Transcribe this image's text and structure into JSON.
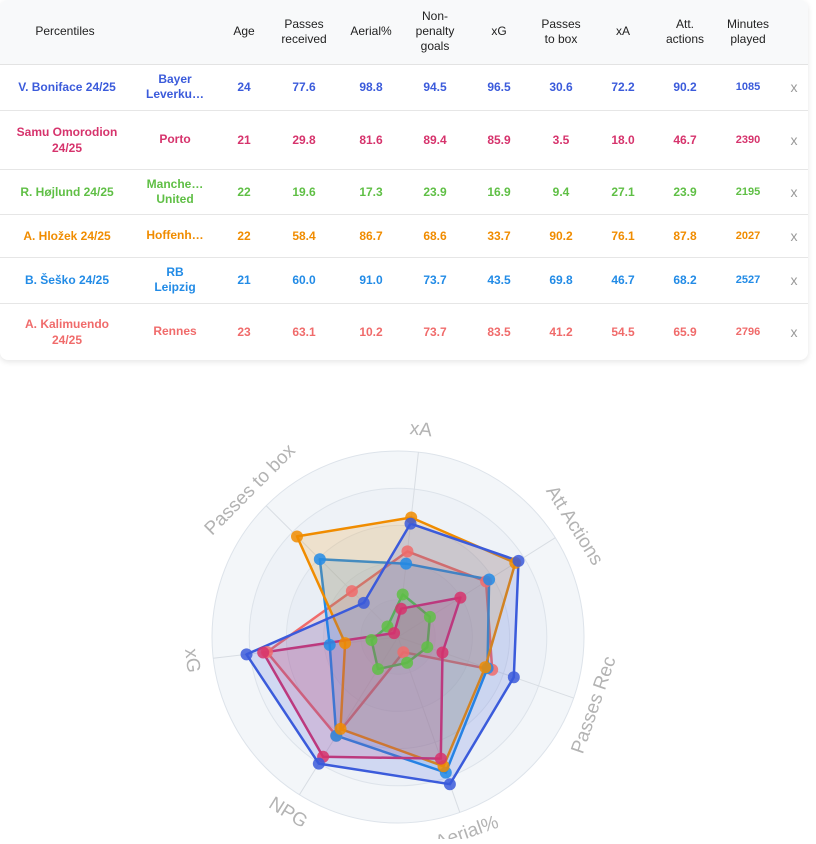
{
  "table": {
    "headers": [
      {
        "key": "percentiles",
        "label": "Percentiles"
      },
      {
        "key": "club",
        "label": ""
      },
      {
        "key": "age",
        "label": "Age"
      },
      {
        "key": "passes_received",
        "label": "Passes\nreceived"
      },
      {
        "key": "aerial",
        "label": "Aerial%"
      },
      {
        "key": "npg",
        "label": "Non-\npenalty\ngoals"
      },
      {
        "key": "xg",
        "label": "xG"
      },
      {
        "key": "passes_to_box",
        "label": "Passes\nto box"
      },
      {
        "key": "xa",
        "label": "xA"
      },
      {
        "key": "att_actions",
        "label": "Att.\nactions"
      },
      {
        "key": "minutes",
        "label": "Minutes\nplayed"
      },
      {
        "key": "remove",
        "label": ""
      }
    ],
    "rows": [
      {
        "name": "V. Boniface 24/25",
        "club": "Bayer\nLeverku…",
        "age": "24",
        "passes_received": "77.6",
        "aerial": "98.8",
        "npg": "94.5",
        "xg": "96.5",
        "passes_to_box": "30.6",
        "xa": "72.2",
        "att_actions": "90.2",
        "minutes": "1085",
        "remove": "x",
        "color": "#3b5bdb"
      },
      {
        "name": "Samu Omorodion\n24/25",
        "club": "Porto",
        "age": "21",
        "passes_received": "29.8",
        "aerial": "81.6",
        "npg": "89.4",
        "xg": "85.9",
        "passes_to_box": "3.5",
        "xa": "18.0",
        "att_actions": "46.7",
        "minutes": "2390",
        "remove": "x",
        "color": "#d6336c"
      },
      {
        "name": "R. Højlund 24/25",
        "club": "Manche…\nUnited",
        "age": "22",
        "passes_received": "19.6",
        "aerial": "17.3",
        "npg": "23.9",
        "xg": "16.9",
        "passes_to_box": "9.4",
        "xa": "27.1",
        "att_actions": "23.9",
        "minutes": "2195",
        "remove": "x",
        "color": "#5fbf45"
      },
      {
        "name": "A. Hložek 24/25",
        "club": "Hoffenh…",
        "age": "22",
        "passes_received": "58.4",
        "aerial": "86.7",
        "npg": "68.6",
        "xg": "33.7",
        "passes_to_box": "90.2",
        "xa": "76.1",
        "att_actions": "87.8",
        "minutes": "2027",
        "remove": "x",
        "color": "#f08c00"
      },
      {
        "name": "B. Šeško 24/25",
        "club": "RB\nLeipzig",
        "age": "21",
        "passes_received": "60.0",
        "aerial": "91.0",
        "npg": "73.7",
        "xg": "43.5",
        "passes_to_box": "69.8",
        "xa": "46.7",
        "att_actions": "68.2",
        "minutes": "2527",
        "remove": "x",
        "color": "#228be6"
      },
      {
        "name": "A. Kalimuendo\n24/25",
        "club": "Rennes",
        "age": "23",
        "passes_received": "63.1",
        "aerial": "10.2",
        "npg": "73.7",
        "xg": "83.5",
        "passes_to_box": "41.2",
        "xa": "54.5",
        "att_actions": "65.9",
        "minutes": "2796",
        "remove": "x",
        "color": "#f06b6b"
      }
    ]
  },
  "chart_data": {
    "type": "radar",
    "axes": [
      "xA",
      "Att Actions",
      "Passes Rec",
      "Aerial%",
      "NPG",
      "xG",
      "Passes to box"
    ],
    "range": [
      0,
      100
    ],
    "rings": 5,
    "series": [
      {
        "name": "A. Kalimuendo 24/25",
        "color": "#f06b6b",
        "values": [
          54.5,
          65.9,
          63.1,
          10.2,
          73.7,
          83.5,
          41.2
        ]
      },
      {
        "name": "B. Šeško 24/25",
        "color": "#228be6",
        "values": [
          46.7,
          68.2,
          60.0,
          91.0,
          73.7,
          43.5,
          69.8
        ]
      },
      {
        "name": "A. Hložek 24/25",
        "color": "#f08c00",
        "values": [
          76.1,
          87.8,
          58.4,
          86.7,
          68.6,
          33.7,
          90.2
        ]
      },
      {
        "name": "R. Højlund 24/25",
        "color": "#5fbf45",
        "values": [
          27.1,
          23.9,
          19.6,
          17.3,
          23.9,
          16.9,
          9.4
        ]
      },
      {
        "name": "Samu Omorodion 24/25",
        "color": "#d6336c",
        "values": [
          18.0,
          46.7,
          29.8,
          81.6,
          89.4,
          85.9,
          3.5
        ]
      },
      {
        "name": "V. Boniface 24/25",
        "color": "#3b5bdb",
        "values": [
          72.2,
          90.2,
          77.6,
          98.8,
          94.5,
          96.5,
          30.6
        ]
      }
    ]
  }
}
